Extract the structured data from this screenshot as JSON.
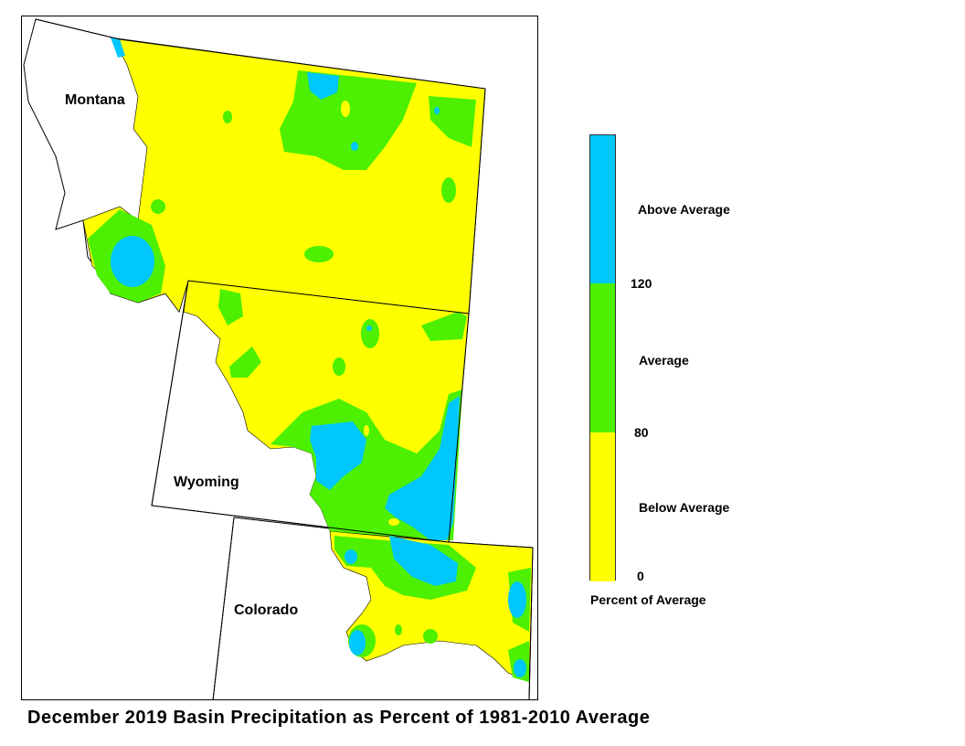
{
  "map": {
    "states": {
      "montana": "Montana",
      "wyoming": "Wyoming",
      "colorado": "Colorado"
    },
    "legend": {
      "title": "Percent of Average",
      "classes": [
        {
          "label": "Above Average",
          "color": "#00c8ff"
        },
        {
          "label": "Average",
          "color": "#4cf000"
        },
        {
          "label": "Below Average",
          "color": "#ffff00"
        }
      ],
      "breaks": {
        "high": "120",
        "mid": "80",
        "low": "0"
      }
    },
    "caption": "December 2019 Basin Precipitation as Percent of 1981-2010 Average"
  }
}
